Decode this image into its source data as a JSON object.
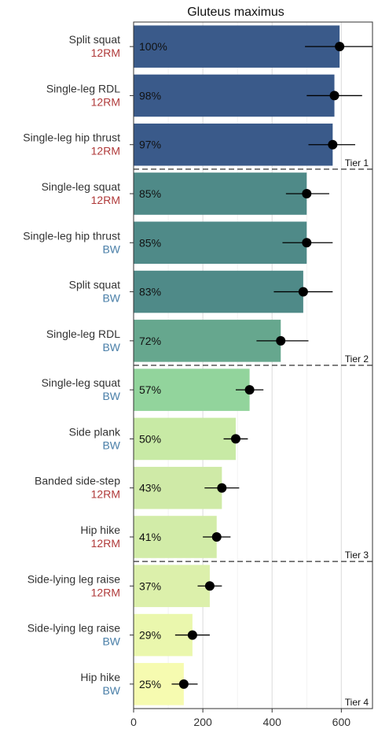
{
  "chart_data": {
    "type": "bar",
    "orientation": "horizontal",
    "title": "Gluteus maximus",
    "xlabel": "",
    "ylabel": "",
    "xlim": [
      0,
      690
    ],
    "xticks": [
      0,
      200,
      400,
      600
    ],
    "grid": true,
    "legend": "none",
    "colors": {
      "12RM": "#b03a3a",
      "BW": "#4a7fa8"
    },
    "bars": [
      {
        "exercise": "Split squat",
        "load": "12RM",
        "value": 595,
        "error": [
          495,
          690
        ],
        "pct_label": "100%",
        "color": "#3a5a8a"
      },
      {
        "exercise": "Single-leg RDL",
        "load": "12RM",
        "value": 580,
        "error": [
          500,
          660
        ],
        "pct_label": "98%",
        "color": "#3a5a8a"
      },
      {
        "exercise": "Single-leg hip thrust",
        "load": "12RM",
        "value": 575,
        "error": [
          505,
          640
        ],
        "pct_label": "97%",
        "color": "#3a5a8a"
      },
      {
        "exercise": "Single-leg squat",
        "load": "12RM",
        "value": 500,
        "error": [
          440,
          565
        ],
        "pct_label": "85%",
        "color": "#4f8a88"
      },
      {
        "exercise": "Single-leg hip thrust",
        "load": "BW",
        "value": 500,
        "error": [
          430,
          575
        ],
        "pct_label": "85%",
        "color": "#4f8a88"
      },
      {
        "exercise": "Split squat",
        "load": "BW",
        "value": 490,
        "error": [
          405,
          575
        ],
        "pct_label": "83%",
        "color": "#4f8a88"
      },
      {
        "exercise": "Single-leg RDL",
        "load": "BW",
        "value": 425,
        "error": [
          355,
          505
        ],
        "pct_label": "72%",
        "color": "#66a78e"
      },
      {
        "exercise": "Single-leg squat",
        "load": "BW",
        "value": 335,
        "error": [
          295,
          375
        ],
        "pct_label": "57%",
        "color": "#92d49c"
      },
      {
        "exercise": "Side plank",
        "load": "BW",
        "value": 295,
        "error": [
          260,
          330
        ],
        "pct_label": "50%",
        "color": "#c8eaa5"
      },
      {
        "exercise": "Banded side-step",
        "load": "12RM",
        "value": 255,
        "error": [
          205,
          305
        ],
        "pct_label": "43%",
        "color": "#cfeaa7"
      },
      {
        "exercise": "Hip hike",
        "load": "12RM",
        "value": 240,
        "error": [
          200,
          280
        ],
        "pct_label": "41%",
        "color": "#d2eca8"
      },
      {
        "exercise": "Side-lying leg raise",
        "load": "12RM",
        "value": 220,
        "error": [
          185,
          255
        ],
        "pct_label": "37%",
        "color": "#dcf0ab"
      },
      {
        "exercise": "Side-lying leg raise",
        "load": "BW",
        "value": 170,
        "error": [
          120,
          220
        ],
        "pct_label": "29%",
        "color": "#eaf7ad"
      },
      {
        "exercise": "Hip hike",
        "load": "BW",
        "value": 145,
        "error": [
          110,
          185
        ],
        "pct_label": "25%",
        "color": "#f6fbb0"
      }
    ],
    "tiers": [
      {
        "label": "Tier 1",
        "after_index": 2
      },
      {
        "label": "Tier 2",
        "after_index": 6
      },
      {
        "label": "Tier 3",
        "after_index": 10
      },
      {
        "label": "Tier 4",
        "after_index": 13
      }
    ]
  }
}
